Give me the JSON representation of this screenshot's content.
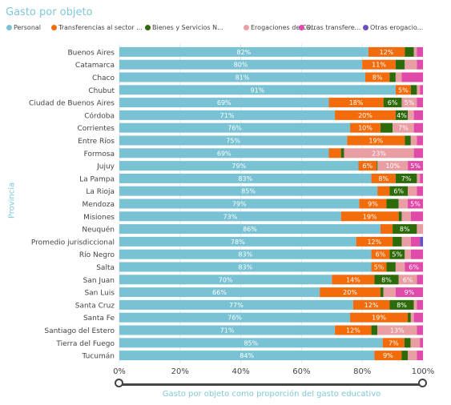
{
  "title": "Gasto por objeto",
  "legend": [
    {
      "label": "Personal",
      "color": "#78c2d4"
    },
    {
      "label": "Transferencias al sector ...",
      "color": "#f26c0c"
    },
    {
      "label": "Bienes y Servicios N...",
      "color": "#2d6a0a"
    },
    {
      "label": "Erogaciones de Ca...",
      "color": "#e89ea3"
    },
    {
      "label": "Otras transfere...",
      "color": "#e04aa8"
    },
    {
      "label": "Otras erogacio...",
      "color": "#6a4fc0"
    }
  ],
  "chart_data": {
    "type": "bar",
    "orientation": "horizontal",
    "stacked": "percent",
    "title": "Gasto por objeto",
    "xlabel": "Gasto por objeto como proporción del gasto educativo",
    "ylabel": "Provincia",
    "xlim": [
      0,
      100
    ],
    "x_ticks": [
      "0%",
      "20%",
      "40%",
      "60%",
      "80%",
      "100%"
    ],
    "categories": [
      "Buenos Aires",
      "Catamarca",
      "Chaco",
      "Chubut",
      "Ciudad de Buenos Aires",
      "Córdoba",
      "Corrientes",
      "Entre Ríos",
      "Formosa",
      "Jujuy",
      "La Pampa",
      "La Rioja",
      "Mendoza",
      "Misiones",
      "Neuquén",
      "Promedio jurisdiccional",
      "Río Negro",
      "Salta",
      "San Juan",
      "San Luis",
      "Santa Cruz",
      "Santa Fe",
      "Santiago del Estero",
      "Tierra del Fuego",
      "Tucumán"
    ],
    "series": [
      {
        "name": "Personal",
        "color": "#78c2d4",
        "values": [
          82,
          80,
          81,
          91,
          69,
          71,
          76,
          75,
          69,
          79,
          83,
          85,
          79,
          73,
          86,
          78,
          83,
          83,
          70,
          66,
          77,
          76,
          71,
          85,
          84
        ]
      },
      {
        "name": "Transferencias al sector ...",
        "color": "#f26c0c",
        "values": [
          12,
          11,
          8,
          5,
          18,
          20,
          10,
          19,
          4,
          6,
          8,
          4,
          9,
          19,
          4,
          12,
          6,
          5,
          14,
          20,
          12,
          19,
          12,
          7,
          9
        ]
      },
      {
        "name": "Bienes y Servicios N...",
        "color": "#2d6a0a",
        "values": [
          3,
          3,
          2,
          2,
          6,
          4,
          4,
          2,
          1,
          0.3,
          7,
          6,
          4,
          1,
          8,
          3,
          5,
          3,
          8,
          1,
          8,
          1,
          2,
          2,
          2
        ]
      },
      {
        "name": "Erogaciones de Ca...",
        "color": "#e89ea3",
        "values": [
          1,
          4,
          2,
          1,
          5,
          2,
          7,
          2,
          23,
          10,
          1,
          3,
          3,
          3,
          2,
          3,
          2,
          3,
          6,
          4,
          1,
          1,
          13,
          3,
          3
        ]
      },
      {
        "name": "Otras transfere...",
        "color": "#e04aa8",
        "values": [
          2,
          2,
          7,
          1,
          2,
          3,
          3,
          2,
          3,
          5,
          1,
          2,
          5,
          4,
          0,
          3,
          4,
          6,
          2,
          9,
          2,
          3,
          2,
          1,
          2
        ]
      },
      {
        "name": "Otras erogacio...",
        "color": "#6a4fc0",
        "values": [
          0,
          0,
          0,
          0,
          0,
          0,
          0,
          0,
          0,
          0,
          0,
          0,
          0,
          0,
          0,
          1,
          0,
          0,
          0,
          0,
          0,
          0,
          0,
          0,
          0
        ]
      }
    ],
    "data_labels": [
      [
        "82%",
        "12%",
        "",
        "",
        "",
        ""
      ],
      [
        "80%",
        "11%",
        "",
        "",
        "",
        ""
      ],
      [
        "81%",
        "8%",
        "",
        "",
        "",
        ""
      ],
      [
        "91%",
        "5%",
        "",
        "",
        "",
        ""
      ],
      [
        "69%",
        "18%",
        "6%",
        "5%",
        "",
        ""
      ],
      [
        "71%",
        "20%",
        "4%",
        "",
        "",
        ""
      ],
      [
        "76%",
        "10%",
        "",
        "7%",
        "",
        ""
      ],
      [
        "75%",
        "19%",
        "",
        "",
        "",
        ""
      ],
      [
        "69%",
        "",
        "",
        "23%",
        "",
        ""
      ],
      [
        "79%",
        "6%",
        "",
        "10%",
        "5%",
        ""
      ],
      [
        "83%",
        "8%",
        "7%",
        "",
        "",
        ""
      ],
      [
        "85%",
        "",
        "6%",
        "",
        "",
        ""
      ],
      [
        "79%",
        "9%",
        "",
        "",
        "5%",
        ""
      ],
      [
        "73%",
        "19%",
        "",
        "",
        "",
        ""
      ],
      [
        "86%",
        "",
        "8%",
        "",
        "",
        ""
      ],
      [
        "78%",
        "12%",
        "",
        "",
        "",
        ""
      ],
      [
        "83%",
        "6%",
        "5%",
        "",
        "",
        ""
      ],
      [
        "83%",
        "5%",
        "",
        "",
        "6%",
        ""
      ],
      [
        "70%",
        "14%",
        "8%",
        "6%",
        "",
        ""
      ],
      [
        "66%",
        "20%",
        "",
        "",
        "9%",
        ""
      ],
      [
        "77%",
        "12%",
        "8%",
        "",
        "",
        ""
      ],
      [
        "76%",
        "19%",
        "",
        "",
        "",
        ""
      ],
      [
        "71%",
        "12%",
        "",
        "13%",
        "",
        ""
      ],
      [
        "85%",
        "7%",
        "",
        "",
        "",
        ""
      ],
      [
        "84%",
        "9%",
        "",
        "",
        "",
        ""
      ]
    ],
    "grid": true,
    "legend_position": "top-left",
    "range_slider": true
  }
}
